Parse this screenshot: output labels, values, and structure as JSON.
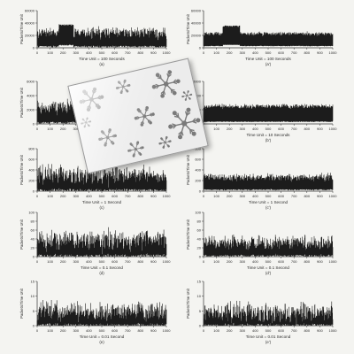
{
  "chart_data": [
    {
      "type": "area",
      "panel": "(a)",
      "xlabel": "Time Unit = 100 Seconds",
      "ylabel": "Packets/Time Unit",
      "ylim": [
        0,
        60000
      ],
      "yticks": [
        "0",
        "20000",
        "40000",
        "60000"
      ],
      "xlim": [
        0,
        1000
      ],
      "xticks": [
        "0",
        "100",
        "200",
        "300",
        "400",
        "500",
        "600",
        "700",
        "800",
        "900",
        "1000"
      ],
      "mean": 22000,
      "spread": 0.35,
      "burst": [
        170,
        280,
        38000
      ]
    },
    {
      "type": "area",
      "panel": "(a')",
      "xlabel": "Time Unit = 100 Seconds",
      "ylabel": "Packets/Time Unit",
      "ylim": [
        0,
        60000
      ],
      "yticks": [
        "0",
        "20000",
        "40000",
        "60000"
      ],
      "xlim": [
        0,
        1000
      ],
      "xticks": [
        "0",
        "100",
        "200",
        "300",
        "400",
        "500",
        "600",
        "700",
        "800",
        "900",
        "1000"
      ],
      "mean": 22000,
      "spread": 0.12,
      "burst": [
        150,
        280,
        36000
      ]
    },
    {
      "type": "area",
      "panel": "(b)",
      "xlabel": "Time Unit = 10 Seconds",
      "ylabel": "Packets/Time Unit",
      "ylim": [
        0,
        6000
      ],
      "yticks": [
        "0",
        "2000",
        "4000",
        "6000"
      ],
      "xlim": [
        0,
        1000
      ],
      "xticks": [
        "0",
        "100",
        "200",
        "300",
        "400",
        "500",
        "600",
        "700",
        "800",
        "900",
        "1000"
      ],
      "mean": 2200,
      "spread": 0.4,
      "burst": null
    },
    {
      "type": "area",
      "panel": "(b')",
      "xlabel": "Time Unit = 10 Seconds",
      "ylabel": "Packets/Time Unit",
      "ylim": [
        0,
        6000
      ],
      "yticks": [
        "0",
        "2000",
        "4000",
        "6000"
      ],
      "xlim": [
        0,
        1000
      ],
      "xticks": [
        "0",
        "100",
        "200",
        "300",
        "400",
        "500",
        "600",
        "700",
        "800",
        "900",
        "1000"
      ],
      "mean": 2400,
      "spread": 0.12,
      "burst": null
    },
    {
      "type": "area",
      "panel": "(c)",
      "xlabel": "Time Unit = 1 Second",
      "ylabel": "Packets/Time Unit",
      "ylim": [
        0,
        800
      ],
      "yticks": [
        "0",
        "200",
        "400",
        "600",
        "800"
      ],
      "xlim": [
        0,
        1000
      ],
      "xticks": [
        "0",
        "100",
        "200",
        "300",
        "400",
        "500",
        "600",
        "700",
        "800",
        "900",
        "1000"
      ],
      "mean": 260,
      "spread": 0.55,
      "burst": null
    },
    {
      "type": "area",
      "panel": "(c')",
      "xlabel": "Time Unit = 1 Second",
      "ylabel": "Packets/Time Unit",
      "ylim": [
        0,
        800
      ],
      "yticks": [
        "0",
        "200",
        "400",
        "600",
        "800"
      ],
      "xlim": [
        0,
        1000
      ],
      "xticks": [
        "0",
        "100",
        "200",
        "300",
        "400",
        "500",
        "600",
        "700",
        "800",
        "900",
        "1000"
      ],
      "mean": 240,
      "spread": 0.25,
      "burst": null
    },
    {
      "type": "area",
      "panel": "(d)",
      "xlabel": "Time Unit = 0.1 Second",
      "ylabel": "Packets/Time Unit",
      "ylim": [
        0,
        100
      ],
      "yticks": [
        "0",
        "20",
        "40",
        "60",
        "80",
        "100"
      ],
      "xlim": [
        0,
        1000
      ],
      "xticks": [
        "0",
        "100",
        "200",
        "300",
        "400",
        "500",
        "600",
        "700",
        "800",
        "900",
        "1000"
      ],
      "mean": 32,
      "spread": 0.6,
      "burst": null
    },
    {
      "type": "area",
      "panel": "(d')",
      "xlabel": "Time Unit = 0.1 Second",
      "ylabel": "Packets/Time Unit",
      "ylim": [
        0,
        100
      ],
      "yticks": [
        "0",
        "20",
        "40",
        "60",
        "80",
        "100"
      ],
      "xlim": [
        0,
        1000
      ],
      "xticks": [
        "0",
        "100",
        "200",
        "300",
        "400",
        "500",
        "600",
        "700",
        "800",
        "900",
        "1000"
      ],
      "mean": 28,
      "spread": 0.5,
      "burst": null
    },
    {
      "type": "area",
      "panel": "(e)",
      "xlabel": "Time Unit = 0.01 Second",
      "ylabel": "Packets/Time Unit",
      "ylim": [
        0,
        15
      ],
      "yticks": [
        "0",
        "5",
        "10",
        "15"
      ],
      "xlim": [
        0,
        1000
      ],
      "xticks": [
        "0",
        "100",
        "200",
        "300",
        "400",
        "500",
        "600",
        "700",
        "800",
        "900",
        "1000"
      ],
      "mean": 4,
      "spread": 0.7,
      "burst": null
    },
    {
      "type": "area",
      "panel": "(e')",
      "xlabel": "Time Unit = 0.01 Second",
      "ylabel": "Packets/Time Unit",
      "ylim": [
        0,
        15
      ],
      "yticks": [
        "0",
        "5",
        "10",
        "15"
      ],
      "xlim": [
        0,
        1000
      ],
      "xticks": [
        "0",
        "100",
        "200",
        "300",
        "400",
        "500",
        "600",
        "700",
        "800",
        "900",
        "1000"
      ],
      "mean": 3.5,
      "spread": 0.8,
      "burst": null
    }
  ],
  "colors": {
    "trace": "#1c1c1c",
    "axis": "#333333",
    "text": "#2a2a2a",
    "sticker_ornament": "#7a7a7a"
  },
  "sticker": {
    "label": "",
    "ornament": "snowflake-pattern"
  }
}
